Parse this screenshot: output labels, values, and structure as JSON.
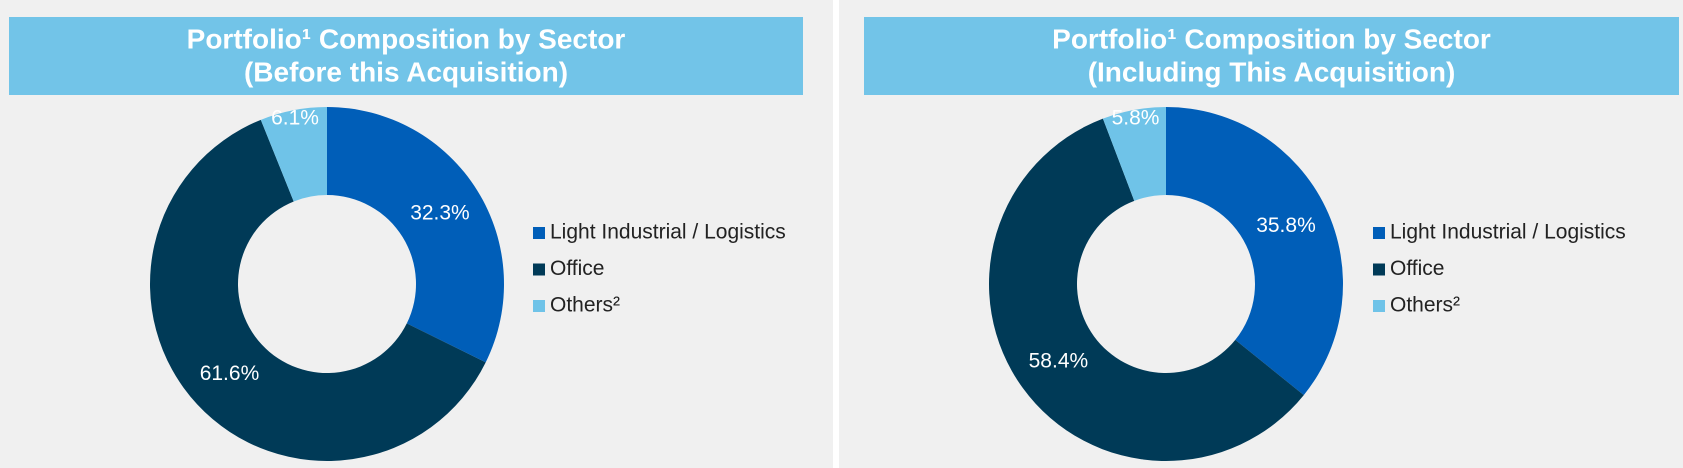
{
  "chart_data": [
    {
      "type": "pie",
      "title": "Portfolio¹ Composition by Sector",
      "subtitle": "(Before this Acquisition)",
      "categories": [
        "Light Industrial / Logistics",
        "Office",
        "Others²"
      ],
      "values": [
        32.3,
        61.6,
        6.1
      ],
      "value_labels": [
        "32.3%",
        "61.6%",
        "6.1%"
      ],
      "colors": [
        "#005eb8",
        "#003a57",
        "#6fc3e8"
      ],
      "donut": true,
      "legend": "right"
    },
    {
      "type": "pie",
      "title": "Portfolio¹ Composition by Sector",
      "subtitle": "(Including This Acquisition)",
      "categories": [
        "Light Industrial / Logistics",
        "Office",
        "Others²"
      ],
      "values": [
        35.8,
        58.4,
        5.8
      ],
      "value_labels": [
        "35.8%",
        "58.4%",
        "5.8%"
      ],
      "colors": [
        "#005eb8",
        "#003a57",
        "#6fc3e8"
      ],
      "donut": true,
      "legend": "right"
    }
  ]
}
